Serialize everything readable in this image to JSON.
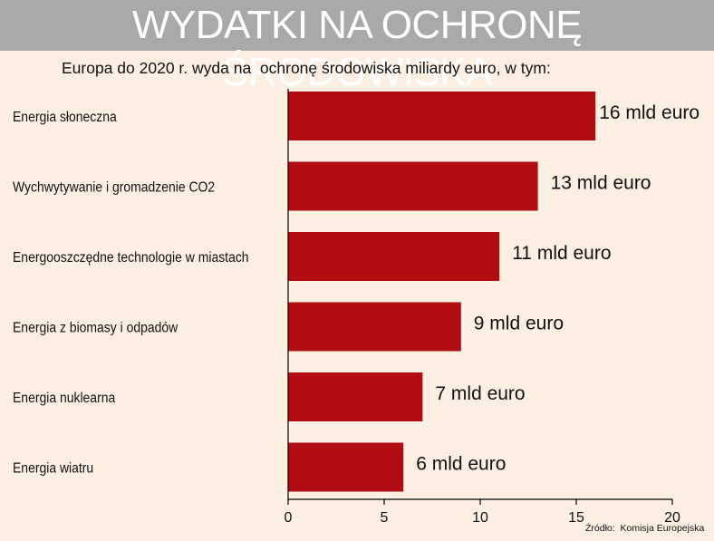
{
  "header": {
    "title": "WYDATKI NA OCHRONĘ ŚRODOWISKA",
    "subtitle": "Europa do 2020 r. wyda na  ochronę środowiska miliardy euro, w tym:"
  },
  "footer": {
    "source": "Źródło:  Komisja Europejska"
  },
  "colors": {
    "bar": "#b00c12",
    "background": "#fdf0e2",
    "title_band": "#a9a9a9"
  },
  "chart_data": {
    "type": "bar",
    "orientation": "horizontal",
    "title": "WYDATKI NA OCHRONĘ ŚRODOWISKA",
    "subtitle": "Europa do 2020 r. wyda na  ochronę środowiska miliardy euro, w tym:",
    "categories": [
      "Energia słoneczna",
      "Wychwytywanie i gromadzenie CO2",
      "Energooszczędne technologie w miastach",
      "Energia z biomasy i odpadów",
      "Energia nuklearna",
      "Energia wiatru"
    ],
    "values": [
      16,
      13,
      11,
      9,
      7,
      6
    ],
    "data_labels": [
      "16 mld euro",
      "13 mld euro",
      "11 mld euro",
      "9 mld euro",
      "7 mld euro",
      "6 mld euro"
    ],
    "xlim": [
      0,
      20
    ],
    "xticks": [
      "0",
      "5",
      "10",
      "15",
      "20"
    ],
    "xlabel": "",
    "ylabel": "",
    "grid": false,
    "legend": "none"
  }
}
